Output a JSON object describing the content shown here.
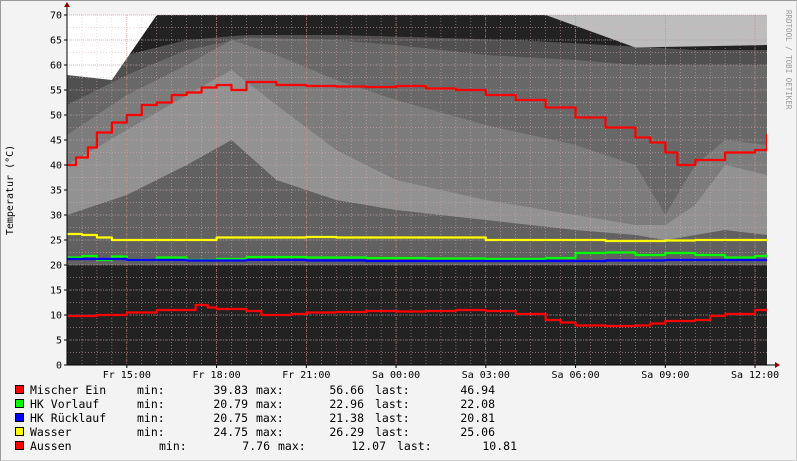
{
  "chart_data": {
    "type": "line",
    "ylabel": "Temperatur (°C)",
    "watermark": "RRDTOOL / TOBI OETIKER",
    "ylim": [
      0,
      70
    ],
    "y_ticks": [
      0,
      5,
      10,
      15,
      20,
      25,
      30,
      35,
      40,
      45,
      50,
      55,
      60,
      65,
      70
    ],
    "x_ticks": [
      "Fr 15:00",
      "Fr 18:00",
      "Fr 21:00",
      "Sa 00:00",
      "Sa 03:00",
      "Sa 06:00",
      "Sa 09:00",
      "Sa 12:00"
    ],
    "x_tick_hours": [
      2.0,
      5.0,
      8.0,
      11.0,
      14.0,
      17.0,
      20.0,
      23.0
    ],
    "x_range_hours": [
      0,
      23.4
    ],
    "grid": true,
    "background": "#222222",
    "series": [
      {
        "name": "Mischer Ein",
        "color": "#ff0000",
        "x": [
          0,
          0.3,
          0.7,
          1.0,
          1.5,
          2.0,
          2.5,
          3.0,
          3.5,
          4.0,
          4.5,
          5.0,
          5.5,
          6.0,
          7.0,
          8.0,
          9.0,
          10.0,
          11.0,
          12.0,
          13.0,
          14.0,
          15.0,
          16.0,
          17.0,
          18.0,
          19.0,
          19.5,
          20.0,
          20.4,
          20.6,
          21.0,
          22.0,
          23.0,
          23.4
        ],
        "values": [
          40.0,
          41.5,
          43.5,
          46.5,
          48.5,
          50.0,
          52.0,
          52.5,
          54.0,
          54.5,
          55.5,
          56.0,
          55.0,
          56.6,
          56.0,
          55.8,
          55.7,
          55.6,
          55.8,
          55.3,
          55.0,
          54.0,
          53.0,
          51.5,
          49.5,
          47.5,
          45.5,
          44.5,
          42.5,
          40.0,
          40.0,
          41.0,
          42.5,
          43.0,
          46.2
        ]
      },
      {
        "name": "HK Vorlauf",
        "color": "#00ff00",
        "x": [
          0,
          0.5,
          1.0,
          1.5,
          2.0,
          3.0,
          4.0,
          5.0,
          6.0,
          8.0,
          10.0,
          12.0,
          14.0,
          16.0,
          17.0,
          18.0,
          19.0,
          20.0,
          21.0,
          22.0,
          23.0,
          23.4
        ],
        "values": [
          21.5,
          21.8,
          21.0,
          21.7,
          21.0,
          21.5,
          21.0,
          21.2,
          21.6,
          21.5,
          21.4,
          21.3,
          21.2,
          21.4,
          22.4,
          22.5,
          22.0,
          22.4,
          22.0,
          21.5,
          21.8,
          22.1
        ]
      },
      {
        "name": "HK Rücklauf",
        "color": "#0000ff",
        "x": [
          0,
          2.0,
          4.0,
          6.0,
          8.0,
          10.0,
          12.0,
          14.0,
          16.0,
          18.0,
          20.0,
          22.0,
          23.4
        ],
        "values": [
          21.2,
          21.0,
          20.9,
          21.0,
          20.9,
          20.8,
          20.8,
          20.8,
          20.8,
          20.9,
          21.0,
          21.0,
          20.8
        ]
      },
      {
        "name": "Wasser",
        "color": "#ffff00",
        "x": [
          0,
          0.5,
          1.0,
          1.5,
          4.0,
          5.0,
          8.0,
          9.0,
          12.0,
          14.0,
          16.0,
          18.0,
          20.0,
          21.0,
          23.4
        ],
        "values": [
          26.2,
          26.0,
          25.5,
          25.0,
          25.0,
          25.5,
          25.6,
          25.5,
          25.5,
          25.0,
          25.0,
          24.8,
          24.9,
          25.0,
          25.0
        ]
      },
      {
        "name": "Aussen",
        "color": "#ff0000",
        "x": [
          0,
          1.0,
          2.0,
          3.0,
          4.0,
          4.3,
          4.7,
          5.0,
          6.0,
          6.5,
          7.5,
          8.0,
          9.0,
          10.0,
          11.0,
          12.0,
          13.0,
          14.0,
          15.0,
          16.0,
          16.5,
          17.0,
          18.0,
          19.0,
          19.5,
          20.0,
          21.0,
          21.5,
          22.0,
          23.0,
          23.4
        ],
        "values": [
          9.8,
          10.0,
          10.5,
          11.0,
          11.0,
          12.0,
          11.5,
          11.2,
          10.8,
          10.0,
          10.2,
          10.5,
          10.6,
          10.8,
          10.7,
          10.8,
          11.0,
          10.8,
          10.2,
          9.0,
          8.5,
          7.9,
          7.8,
          7.9,
          8.3,
          8.8,
          9.0,
          9.8,
          10.2,
          11.0,
          10.8
        ]
      }
    ]
  },
  "legend": [
    {
      "name": "Mischer Ein",
      "color": "#ff0000",
      "min_label": "min:",
      "min": "39.83",
      "max_label": "max:",
      "max": "56.66",
      "last_label": "last:",
      "last": "46.94"
    },
    {
      "name": "HK Vorlauf",
      "color": "#00ff00",
      "min_label": "min:",
      "min": "20.79",
      "max_label": "max:",
      "max": "22.96",
      "last_label": "last:",
      "last": "22.08"
    },
    {
      "name": "HK Rücklauf",
      "color": "#0000ff",
      "min_label": "min:",
      "min": "20.75",
      "max_label": "max:",
      "max": "21.38",
      "last_label": "last:",
      "last": "20.81"
    },
    {
      "name": "Wasser",
      "color": "#ffff00",
      "min_label": "min:",
      "min": "24.75",
      "max_label": "max:",
      "max": "26.29",
      "last_label": "last:",
      "last": "25.06"
    },
    {
      "name": "Aussen",
      "color": "#ff0000",
      "min_label": "min:",
      "min": "7.76",
      "max_label": "max:",
      "max": "12.07",
      "last_label": "last:",
      "last": "10.81"
    }
  ]
}
